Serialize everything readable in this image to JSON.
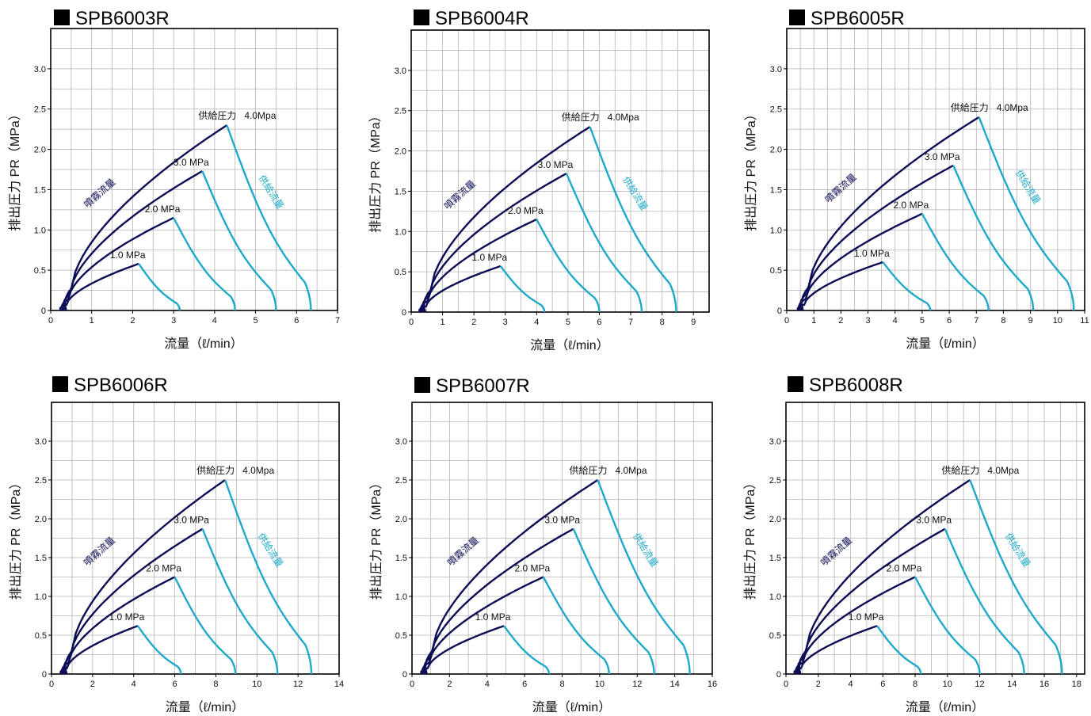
{
  "colors": {
    "discharge": "#0d0d56",
    "supply": "#1fa9c9",
    "grid": "#b4b4b4",
    "frame": "#000000"
  },
  "chart_data": [
    {
      "type": "line",
      "title": "SPB6003R",
      "xlabel": "流量（ℓ/min）",
      "ylabel": "排出圧力 PR（MPa）",
      "xlim": [
        0,
        7
      ],
      "ylim": [
        0,
        3.5
      ],
      "x_ticks": [
        "0",
        "1",
        "2",
        "3",
        "4",
        "5",
        "6",
        "7"
      ],
      "y_ticks": [
        "0",
        "0.5",
        "1.0",
        "1.5",
        "2.0",
        "2.5",
        "3.0"
      ],
      "grid": true,
      "annotations": {
        "supply_pressure_label": "供給圧力",
        "discharge_curve_label": "噴霧流量",
        "supply_curve_label": "供給流量"
      },
      "series": [
        {
          "name": "1.0 MPa",
          "peak": [
            2.15,
            0.58
          ],
          "discharge_start": 0.26,
          "supply_end": 3.15
        },
        {
          "name": "2.0 MPa",
          "peak": [
            3.0,
            1.15
          ],
          "discharge_start": 0.3,
          "supply_end": 4.5
        },
        {
          "name": "3.0 MPa",
          "peak": [
            3.7,
            1.73
          ],
          "discharge_start": 0.34,
          "supply_end": 5.5
        },
        {
          "name": "4.0Mpa",
          "peak": [
            4.3,
            2.3
          ],
          "discharge_start": 0.38,
          "supply_end": 6.35
        }
      ]
    },
    {
      "type": "line",
      "title": "SPB6004R",
      "xlabel": "流量（ℓ/min）",
      "ylabel": "排出圧力 PR（MPa）",
      "xlim": [
        0,
        9.5
      ],
      "ylim": [
        0,
        3.5
      ],
      "x_ticks": [
        "0",
        "1",
        "2",
        "3",
        "4",
        "5",
        "6",
        "7",
        "8",
        "9"
      ],
      "y_ticks": [
        "0",
        "0.5",
        "1.0",
        "1.5",
        "2.0",
        "2.5",
        "3.0"
      ],
      "grid": true,
      "annotations": {
        "supply_pressure_label": "供給圧力",
        "discharge_curve_label": "噴霧流量",
        "supply_curve_label": "供給流量"
      },
      "series": [
        {
          "name": "1.0 MPa",
          "peak": [
            2.85,
            0.57
          ],
          "discharge_start": 0.3,
          "supply_end": 4.25
        },
        {
          "name": "2.0 MPa",
          "peak": [
            4.0,
            1.15
          ],
          "discharge_start": 0.35,
          "supply_end": 6.0
        },
        {
          "name": "3.0 MPa",
          "peak": [
            4.95,
            1.72
          ],
          "discharge_start": 0.4,
          "supply_end": 7.35
        },
        {
          "name": "4.0Mpa",
          "peak": [
            5.7,
            2.3
          ],
          "discharge_start": 0.45,
          "supply_end": 8.45
        }
      ]
    },
    {
      "type": "line",
      "title": "SPB6005R",
      "xlabel": "流量（ℓ/min）",
      "ylabel": "排出圧力 PR（MPa）",
      "xlim": [
        0,
        11
      ],
      "ylim": [
        0,
        3.5
      ],
      "x_ticks": [
        "0",
        "1",
        "2",
        "3",
        "4",
        "5",
        "6",
        "7",
        "8",
        "9",
        "10",
        "11"
      ],
      "y_ticks": [
        "0",
        "0.5",
        "1.0",
        "1.5",
        "2.0",
        "2.5",
        "3.0"
      ],
      "grid": true,
      "annotations": {
        "supply_pressure_label": "供給圧力",
        "discharge_curve_label": "噴霧流量",
        "supply_curve_label": "供給流量"
      },
      "series": [
        {
          "name": "1.0 MPa",
          "peak": [
            3.55,
            0.6
          ],
          "discharge_start": 0.45,
          "supply_end": 5.3
        },
        {
          "name": "2.0 MPa",
          "peak": [
            5.0,
            1.2
          ],
          "discharge_start": 0.5,
          "supply_end": 7.45
        },
        {
          "name": "3.0 MPa",
          "peak": [
            6.15,
            1.8
          ],
          "discharge_start": 0.55,
          "supply_end": 9.1
        },
        {
          "name": "4.0Mpa",
          "peak": [
            7.1,
            2.4
          ],
          "discharge_start": 0.6,
          "supply_end": 10.6
        }
      ]
    },
    {
      "type": "line",
      "title": "SPB6006R",
      "xlabel": "流量（ℓ/min）",
      "ylabel": "排出圧力 PR（MPa）",
      "xlim": [
        0,
        14
      ],
      "ylim": [
        0,
        3.5
      ],
      "x_ticks": [
        "0",
        "2",
        "4",
        "6",
        "8",
        "10",
        "12",
        "14"
      ],
      "y_ticks": [
        "0",
        "0.5",
        "1.0",
        "1.5",
        "2.0",
        "2.5",
        "3.0"
      ],
      "grid": true,
      "annotations": {
        "supply_pressure_label": "供給圧力",
        "discharge_curve_label": "噴霧流量",
        "supply_curve_label": "供給流量"
      },
      "series": [
        {
          "name": "1.0 MPa",
          "peak": [
            4.2,
            0.62
          ],
          "discharge_start": 0.5,
          "supply_end": 6.3
        },
        {
          "name": "2.0 MPa",
          "peak": [
            6.0,
            1.25
          ],
          "discharge_start": 0.58,
          "supply_end": 8.95
        },
        {
          "name": "3.0 MPa",
          "peak": [
            7.35,
            1.87
          ],
          "discharge_start": 0.66,
          "supply_end": 11.0
        },
        {
          "name": "4.0Mpa",
          "peak": [
            8.45,
            2.5
          ],
          "discharge_start": 0.74,
          "supply_end": 12.65
        }
      ]
    },
    {
      "type": "line",
      "title": "SPB6007R",
      "xlabel": "流量（ℓ/min）",
      "ylabel": "排出圧力 PR（MPa）",
      "xlim": [
        0,
        16
      ],
      "ylim": [
        0,
        3.5
      ],
      "x_ticks": [
        "0",
        "2",
        "4",
        "6",
        "8",
        "10",
        "12",
        "14",
        "16"
      ],
      "y_ticks": [
        "0",
        "0.5",
        "1.0",
        "1.5",
        "2.0",
        "2.5",
        "3.0"
      ],
      "grid": true,
      "annotations": {
        "supply_pressure_label": "供給圧力",
        "discharge_curve_label": "噴霧流量",
        "supply_curve_label": "供給流量"
      },
      "series": [
        {
          "name": "1.0 MPa",
          "peak": [
            4.9,
            0.62
          ],
          "discharge_start": 0.55,
          "supply_end": 7.3
        },
        {
          "name": "2.0 MPa",
          "peak": [
            7.0,
            1.25
          ],
          "discharge_start": 0.63,
          "supply_end": 10.5
        },
        {
          "name": "3.0 MPa",
          "peak": [
            8.6,
            1.87
          ],
          "discharge_start": 0.71,
          "supply_end": 12.9
        },
        {
          "name": "4.0Mpa",
          "peak": [
            9.9,
            2.5
          ],
          "discharge_start": 0.79,
          "supply_end": 14.8
        }
      ]
    },
    {
      "type": "line",
      "title": "SPB6008R",
      "xlabel": "流量（ℓ/min）",
      "ylabel": "排出圧力 PR（MPa）",
      "xlim": [
        0,
        18.5
      ],
      "ylim": [
        0,
        3.5
      ],
      "x_ticks": [
        "0",
        "2",
        "4",
        "6",
        "8",
        "10",
        "12",
        "14",
        "16",
        "18"
      ],
      "y_ticks": [
        "0",
        "0.5",
        "1.0",
        "1.5",
        "2.0",
        "2.5",
        "3.0"
      ],
      "grid": true,
      "annotations": {
        "supply_pressure_label": "供給圧力",
        "discharge_curve_label": "噴霧流量",
        "supply_curve_label": "供給流量"
      },
      "series": [
        {
          "name": "1.0 MPa",
          "peak": [
            5.65,
            0.62
          ],
          "discharge_start": 0.6,
          "supply_end": 8.35
        },
        {
          "name": "2.0 MPa",
          "peak": [
            8.0,
            1.25
          ],
          "discharge_start": 0.7,
          "supply_end": 12.0
        },
        {
          "name": "3.0 MPa",
          "peak": [
            9.85,
            1.87
          ],
          "discharge_start": 0.8,
          "supply_end": 14.75
        },
        {
          "name": "4.0Mpa",
          "peak": [
            11.4,
            2.5
          ],
          "discharge_start": 0.9,
          "supply_end": 17.1
        }
      ]
    }
  ]
}
